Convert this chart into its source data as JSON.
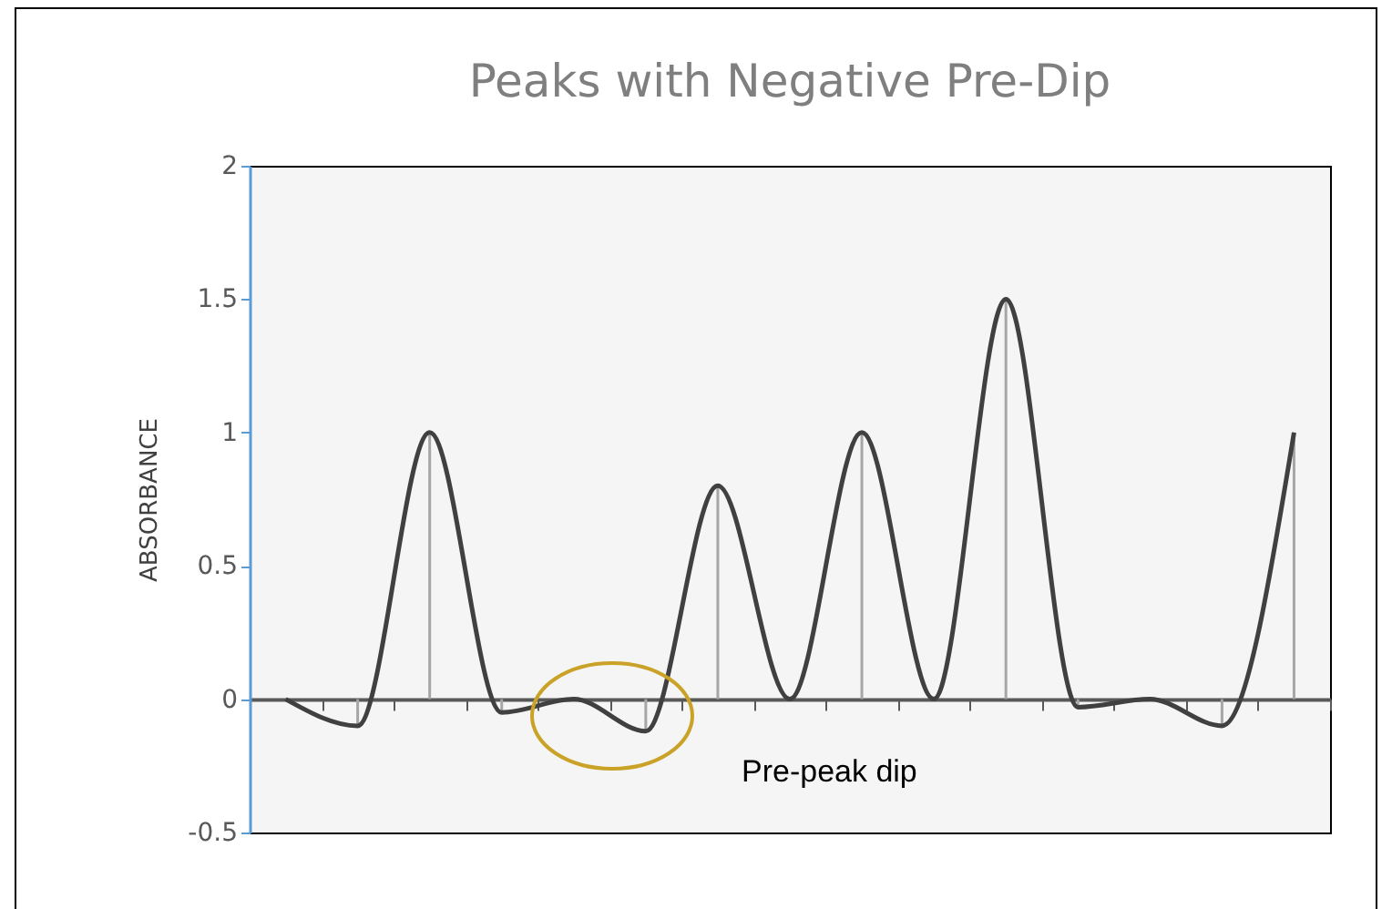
{
  "chart_data": {
    "type": "line",
    "title": "Peaks with Negative Pre-Dip",
    "ylabel": "ABSORBANCE",
    "categories": [
      null,
      null,
      null,
      null,
      null,
      null,
      null,
      null,
      null,
      null,
      null,
      null,
      null,
      null,
      null
    ],
    "series": [
      {
        "color": "#404040",
        "values": [
          0,
          -0.1,
          1,
          -0.05,
          0,
          -0.12,
          0.8,
          0,
          1,
          0,
          1.5,
          -0.03,
          0,
          -0.1,
          1
        ],
        "errors": [
          null,
          [
            -0.1,
            0
          ],
          [
            0,
            1
          ],
          [
            -0.05,
            0
          ],
          null,
          [
            -0.12,
            0
          ],
          [
            0,
            0.8
          ],
          null,
          [
            0,
            1
          ],
          null,
          [
            0,
            1.5
          ],
          [
            -0.03,
            0
          ],
          null,
          [
            -0.1,
            0
          ],
          [
            0,
            1
          ]
        ]
      }
    ],
    "ylim": [
      -0.5,
      2
    ],
    "yticks": [
      -0.5,
      0,
      0.5,
      1,
      1.5,
      2
    ],
    "marker": "none",
    "line_style": "solid",
    "tick_labels": "y",
    "annotations": [
      "Pre-peak dip"
    ]
  }
}
